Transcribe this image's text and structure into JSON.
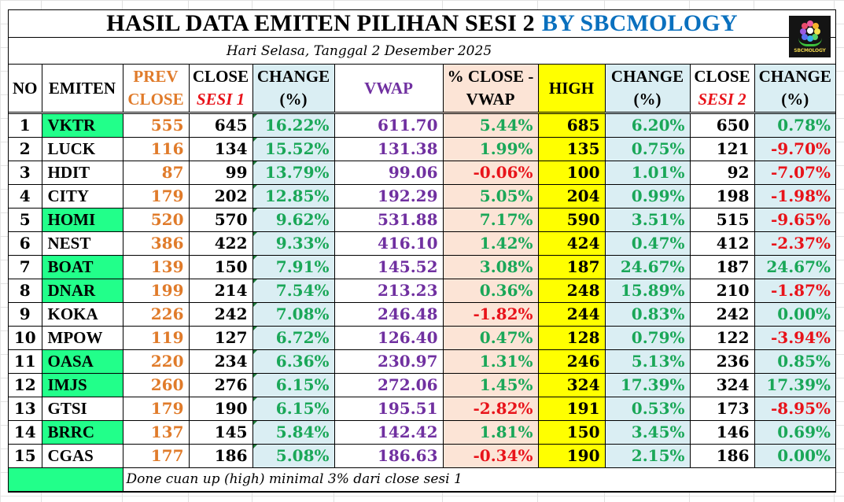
{
  "title": {
    "main": "HASIL DATA EMITEN PILIHAN SESI 2",
    "brand": "BY SBCMOLOGY",
    "subtitle": "Hari Selasa, Tanggal 2 Desember 2025"
  },
  "logo": {
    "icon": "sbcmology-logo-icon",
    "text": "SBCMOLOGY"
  },
  "columns": [
    {
      "line1": "NO",
      "line2": ""
    },
    {
      "line1": "EMITEN",
      "line2": ""
    },
    {
      "line1": "PREV",
      "line2": "CLOSE"
    },
    {
      "line1": "CLOSE",
      "line2": "SESI 1"
    },
    {
      "line1": "CHANGE",
      "line2": "(%)"
    },
    {
      "line1": "VWAP",
      "line2": ""
    },
    {
      "line1": "% CLOSE  -",
      "line2": "VWAP"
    },
    {
      "line1": "HIGH",
      "line2": ""
    },
    {
      "line1": "CHANGE",
      "line2": "(%)"
    },
    {
      "line1": "CLOSE",
      "line2": "SESI 2"
    },
    {
      "line1": "CHANGE",
      "line2": "(%)"
    }
  ],
  "colors": {
    "highlight_green": "#22ff8a",
    "brand_blue": "#0a70be",
    "prev_close_orange": "#e07b2a",
    "vwap_purple": "#7030a0",
    "positive_green": "#1aa758",
    "negative_red": "#e8131a",
    "high_yellow": "#ffff00",
    "change_blue_bg": "#daeef3",
    "close_vwap_peach_bg": "#fce4d6"
  },
  "rows": [
    {
      "no": "1",
      "emiten": "VKTR",
      "highlight": true,
      "prev_close": "555",
      "close_sesi1": "645",
      "change1": "16.22%",
      "vwap": "611.70",
      "close_vwap": "5.44%",
      "high": "685",
      "change_high": "6.20%",
      "close_sesi2": "650",
      "change2": "0.78%"
    },
    {
      "no": "2",
      "emiten": "LUCK",
      "highlight": false,
      "prev_close": "116",
      "close_sesi1": "134",
      "change1": "15.52%",
      "vwap": "131.38",
      "close_vwap": "1.99%",
      "high": "135",
      "change_high": "0.75%",
      "close_sesi2": "121",
      "change2": "-9.70%"
    },
    {
      "no": "3",
      "emiten": "HDIT",
      "highlight": false,
      "prev_close": "87",
      "close_sesi1": "99",
      "change1": "13.79%",
      "vwap": "99.06",
      "close_vwap": "-0.06%",
      "high": "100",
      "change_high": "1.01%",
      "close_sesi2": "92",
      "change2": "-7.07%"
    },
    {
      "no": "4",
      "emiten": "CITY",
      "highlight": false,
      "prev_close": "179",
      "close_sesi1": "202",
      "change1": "12.85%",
      "vwap": "192.29",
      "close_vwap": "5.05%",
      "high": "204",
      "change_high": "0.99%",
      "close_sesi2": "198",
      "change2": "-1.98%"
    },
    {
      "no": "5",
      "emiten": "HOMI",
      "highlight": true,
      "prev_close": "520",
      "close_sesi1": "570",
      "change1": "9.62%",
      "vwap": "531.88",
      "close_vwap": "7.17%",
      "high": "590",
      "change_high": "3.51%",
      "close_sesi2": "515",
      "change2": "-9.65%"
    },
    {
      "no": "6",
      "emiten": "NEST",
      "highlight": false,
      "prev_close": "386",
      "close_sesi1": "422",
      "change1": "9.33%",
      "vwap": "416.10",
      "close_vwap": "1.42%",
      "high": "424",
      "change_high": "0.47%",
      "close_sesi2": "412",
      "change2": "-2.37%"
    },
    {
      "no": "7",
      "emiten": "BOAT",
      "highlight": true,
      "prev_close": "139",
      "close_sesi1": "150",
      "change1": "7.91%",
      "vwap": "145.52",
      "close_vwap": "3.08%",
      "high": "187",
      "change_high": "24.67%",
      "close_sesi2": "187",
      "change2": "24.67%"
    },
    {
      "no": "8",
      "emiten": "DNAR",
      "highlight": true,
      "prev_close": "199",
      "close_sesi1": "214",
      "change1": "7.54%",
      "vwap": "213.23",
      "close_vwap": "0.36%",
      "high": "248",
      "change_high": "15.89%",
      "close_sesi2": "210",
      "change2": "-1.87%"
    },
    {
      "no": "9",
      "emiten": "KOKA",
      "highlight": false,
      "prev_close": "226",
      "close_sesi1": "242",
      "change1": "7.08%",
      "vwap": "246.48",
      "close_vwap": "-1.82%",
      "high": "244",
      "change_high": "0.83%",
      "close_sesi2": "242",
      "change2": "0.00%"
    },
    {
      "no": "10",
      "emiten": "MPOW",
      "highlight": false,
      "prev_close": "119",
      "close_sesi1": "127",
      "change1": "6.72%",
      "vwap": "126.40",
      "close_vwap": "0.47%",
      "high": "128",
      "change_high": "0.79%",
      "close_sesi2": "122",
      "change2": "-3.94%"
    },
    {
      "no": "11",
      "emiten": "OASA",
      "highlight": true,
      "prev_close": "220",
      "close_sesi1": "234",
      "change1": "6.36%",
      "vwap": "230.97",
      "close_vwap": "1.31%",
      "high": "246",
      "change_high": "5.13%",
      "close_sesi2": "236",
      "change2": "0.85%"
    },
    {
      "no": "12",
      "emiten": "IMJS",
      "highlight": true,
      "prev_close": "260",
      "close_sesi1": "276",
      "change1": "6.15%",
      "vwap": "272.06",
      "close_vwap": "1.45%",
      "high": "324",
      "change_high": "17.39%",
      "close_sesi2": "324",
      "change2": "17.39%"
    },
    {
      "no": "13",
      "emiten": "GTSI",
      "highlight": false,
      "prev_close": "179",
      "close_sesi1": "190",
      "change1": "6.15%",
      "vwap": "195.51",
      "close_vwap": "-2.82%",
      "high": "191",
      "change_high": "0.53%",
      "close_sesi2": "173",
      "change2": "-8.95%"
    },
    {
      "no": "14",
      "emiten": "BRRC",
      "highlight": true,
      "prev_close": "137",
      "close_sesi1": "145",
      "change1": "5.84%",
      "vwap": "142.42",
      "close_vwap": "1.81%",
      "high": "150",
      "change_high": "3.45%",
      "close_sesi2": "146",
      "change2": "0.69%"
    },
    {
      "no": "15",
      "emiten": "CGAS",
      "highlight": false,
      "prev_close": "177",
      "close_sesi1": "186",
      "change1": "5.08%",
      "vwap": "186.63",
      "close_vwap": "-0.34%",
      "high": "190",
      "change_high": "2.15%",
      "close_sesi2": "186",
      "change2": "0.00%"
    }
  ],
  "legend": {
    "note": "Done cuan up (high) minimal 3% dari close sesi 1"
  }
}
